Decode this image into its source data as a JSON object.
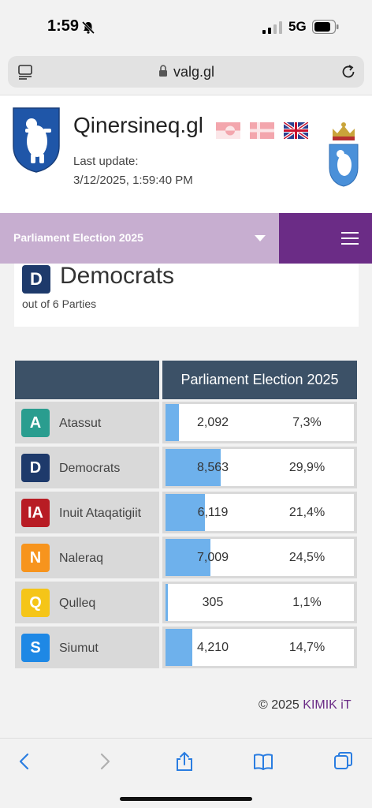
{
  "status": {
    "time": "1:59",
    "network": "5G"
  },
  "browser": {
    "url": "valg.gl"
  },
  "header": {
    "site_title": "Qinersineq.gl",
    "last_update_label": "Last update:",
    "last_update_value": "3/12/2025, 1:59:40 PM"
  },
  "election_select": {
    "label": "Parliament Election 2025"
  },
  "party_card": {
    "badge": "D",
    "name": "Democrats",
    "subtitle": "out of 6 Parties",
    "color": "#1e3a6b"
  },
  "table": {
    "header": "Parliament Election 2025",
    "rows": [
      {
        "badge": "A",
        "party": "Atassut",
        "votes": "2,092",
        "percent": "7,3%",
        "share": 7.3,
        "color": "#2a9d8f"
      },
      {
        "badge": "D",
        "party": "Democrats",
        "votes": "8,563",
        "percent": "29,9%",
        "share": 29.9,
        "color": "#1e3a6b"
      },
      {
        "badge": "IA",
        "party": "Inuit Ataqatigiit",
        "votes": "6,119",
        "percent": "21,4%",
        "share": 21.4,
        "color": "#b81c24"
      },
      {
        "badge": "N",
        "party": "Naleraq",
        "votes": "7,009",
        "percent": "24,5%",
        "share": 24.5,
        "color": "#f7941d"
      },
      {
        "badge": "Q",
        "party": "Qulleq",
        "votes": "305",
        "percent": "1,1%",
        "share": 1.1,
        "color": "#f5c518"
      },
      {
        "badge": "S",
        "party": "Siumut",
        "votes": "4,210",
        "percent": "14,7%",
        "share": 14.7,
        "color": "#1e88e5"
      }
    ]
  },
  "footer": {
    "copyright": "© 2025",
    "brand": "KIMIK iT"
  },
  "colors": {
    "accent": "#6b2c86",
    "bar": "#6eb1ec",
    "table_header": "#3c5167"
  }
}
